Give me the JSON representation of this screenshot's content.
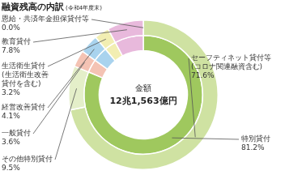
{
  "chart_data": {
    "type": "doughnut",
    "title": "融資残高の内訳",
    "subtitle": "(令和4年度末)",
    "center_text": [
      "金額",
      "12兆1,563億円"
    ],
    "data_labels": true,
    "rings": [
      {
        "categories": [
          [
            "セーフティネット貸付等",
            "(コロナ関連融資含む)"
          ],
          [
            "その他特別貸付"
          ],
          [
            "一般貸付"
          ],
          [
            "経営改善貸付"
          ],
          [
            "生活衛生貸付",
            "(生活衛生改善",
            "貸付を含む)"
          ],
          [
            "教育貸付"
          ],
          [
            "恩給・共済年金担保貸付等"
          ]
        ],
        "values": [
          71.6,
          9.5,
          3.6,
          4.1,
          3.2,
          7.8,
          0.0
        ],
        "value_labels": [
          "71.6%",
          "9.5%",
          "3.6%",
          "4.1%",
          "3.2%",
          "7.8%",
          "0.0%"
        ],
        "colors": [
          "#cfe2a2",
          "#e4efc9",
          "#f4c3b4",
          "#a9d3ee",
          "#f2eeb2",
          "#e8b9dc",
          "#cccccc"
        ]
      },
      {
        "categories": [
          [
            "特別貸付"
          ],
          null,
          null,
          null,
          null,
          null
        ],
        "values": [
          81.2,
          3.6,
          4.1,
          3.2,
          7.8,
          0.0
        ],
        "value_labels": [
          "81.2%",
          null,
          null,
          null,
          null,
          null
        ],
        "colors": [
          "#9fc85e",
          "#f4c3b4",
          "#a9d3ee",
          "#f2eeb2",
          "#e8b9dc",
          "#cccccc"
        ]
      }
    ]
  }
}
